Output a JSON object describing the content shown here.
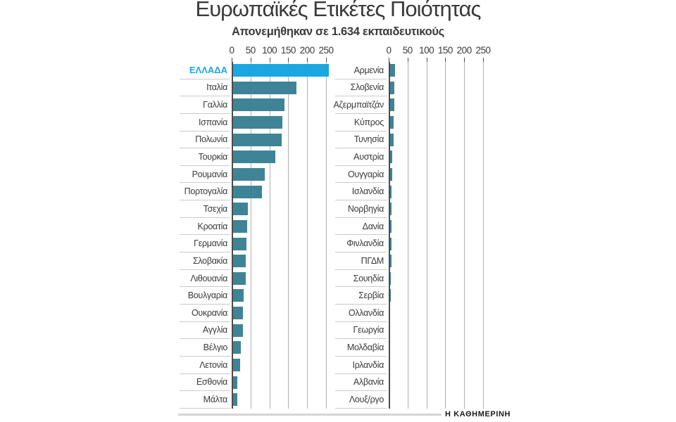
{
  "header": {
    "title": "Ευρωπαϊκές Ετικέτες Ποιότητας",
    "subtitle": "Απονεμήθηκαν σε 1.634 εκπαιδευτικούς"
  },
  "footer": {
    "source": "Η ΚΑΘΗΜΕΡΙΝΗ"
  },
  "colors": {
    "highlight": "#1BA7E2",
    "bar": "#3E8496",
    "text": "#3A3A3C",
    "grid": "#AFAFAF",
    "axis": "#4C4C4C",
    "separator": "#CBCBCB",
    "footer_line": "#D4D4D4"
  },
  "chart_data": {
    "type": "bar",
    "orientation": "horizontal",
    "title": "Ευρωπαϊκές Ετικέτες Ποιότητας",
    "subtitle": "Απονεμήθηκαν σε 1.634 εκπαιδευτικούς",
    "total_mentioned": "1.634",
    "xlim": [
      0,
      250
    ],
    "axis_ticks": [
      0,
      50,
      100,
      150,
      200,
      250
    ],
    "grid": true,
    "legend": false,
    "highlight_category": "ΕΛΛΑΔΑ",
    "panels": [
      {
        "categories": [
          "ΕΛΛΑΔΑ",
          "Ιταλία",
          "Γαλλία",
          "Ισπανία",
          "Πολωνία",
          "Τουρκία",
          "Ρουμανία",
          "Πορτογαλία",
          "Τσεχία",
          "Κροατία",
          "Γερμανία",
          "Σλοβακία",
          "Λιθουανία",
          "Βουλγαρία",
          "Ουκρανία",
          "Αγγλία",
          "Βέλγιο",
          "Λετονία",
          "Εσθονία",
          "Μάλτα"
        ],
        "values": [
          257,
          172,
          139,
          134,
          132,
          116,
          88,
          80,
          42,
          41,
          39,
          38,
          37,
          31,
          30,
          29,
          24,
          22,
          15,
          14
        ]
      },
      {
        "categories": [
          "Αρμενία",
          "Σλοβενία",
          "Αζερμπαϊτζάν",
          "Κύπρος",
          "Τυνησία",
          "Αυστρία",
          "Ουγγαρία",
          "Ισλανδία",
          "Νορβηγία",
          "Δανία",
          "Φινλανδία",
          "ΠΓΔΜ",
          "Σουηδία",
          "Σερβία",
          "Ολλανδία",
          "Γεωργία",
          "Μολδαβία",
          "Ιρλανδία",
          "Αλβανία",
          "Λουξ/ργο"
        ],
        "values": [
          16,
          14,
          14,
          13,
          13,
          10,
          9,
          8,
          8,
          7,
          7,
          7,
          6,
          5,
          4,
          4,
          4,
          2,
          2,
          1
        ]
      }
    ]
  }
}
